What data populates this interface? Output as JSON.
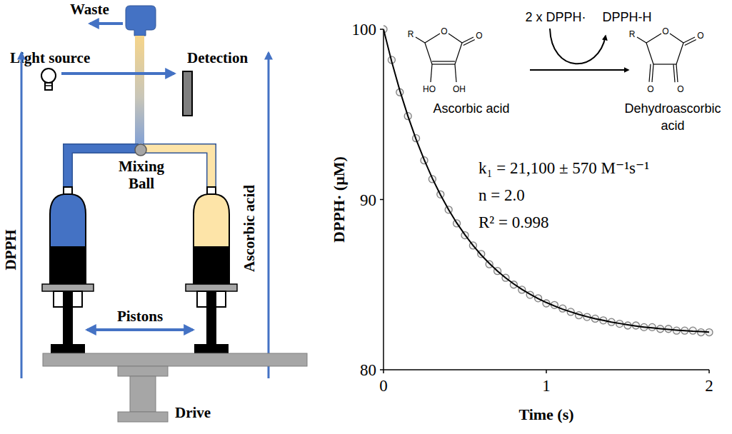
{
  "diagram": {
    "waste": "Waste",
    "light_source": "Light source",
    "detection": "Detection",
    "mixing_ball": "Mixing Ball",
    "left_syringe": "DPPH",
    "right_syringe": "Ascorbic acid",
    "pistons": "Pistons",
    "drive": "Drive"
  },
  "scheme": {
    "reagent": "2 x DPPH·",
    "product": "DPPH-H",
    "reactant_name": "Ascorbic acid",
    "product_name": "Dehydroascorbic acid",
    "reactant_atoms": [
      "R",
      "O",
      "O",
      "HO",
      "OH"
    ],
    "product_atoms": [
      "R",
      "O",
      "O",
      "O",
      "O"
    ]
  },
  "chart_data": {
    "type": "scatter",
    "xlabel": "Time (s)",
    "ylabel": "DPPH· (µM)",
    "xlim": [
      0,
      2
    ],
    "ylim": [
      80,
      100
    ],
    "xticks": [
      0,
      1,
      2
    ],
    "yticks": [
      80,
      90,
      100
    ],
    "annotations": [
      "k₁ = 21,100 ± 570 M⁻¹s⁻¹",
      "n = 2.0",
      "R² = 0.998"
    ],
    "x": [
      0,
      0.05,
      0.1,
      0.15,
      0.2,
      0.25,
      0.3,
      0.35,
      0.4,
      0.45,
      0.5,
      0.55,
      0.6,
      0.65,
      0.7,
      0.75,
      0.8,
      0.85,
      0.9,
      0.95,
      1,
      1.05,
      1.1,
      1.15,
      1.2,
      1.25,
      1.3,
      1.35,
      1.4,
      1.45,
      1.5,
      1.55,
      1.6,
      1.65,
      1.7,
      1.75,
      1.8,
      1.85,
      1.9,
      1.95,
      2
    ],
    "series": [
      {
        "type": "scatter",
        "marker": "circle",
        "color": "#7f7f7f",
        "values": [
          100,
          98.2,
          96.3,
          94.9,
          93.6,
          92.3,
          91.2,
          90.3,
          89.4,
          88.6,
          87.9,
          87.3,
          86.8,
          86.2,
          85.8,
          85.4,
          85.0,
          84.7,
          84.4,
          84.2,
          83.9,
          83.8,
          83.6,
          83.4,
          83.2,
          83.1,
          83.0,
          82.9,
          82.8,
          82.7,
          82.6,
          82.6,
          82.5,
          82.5,
          82.4,
          82.4,
          82.3,
          82.3,
          82.3,
          82.2,
          82.2
        ]
      },
      {
        "type": "line",
        "line_style": "solid",
        "color": "#000000",
        "values": [
          100,
          98.11,
          96.41,
          94.9,
          93.54,
          92.33,
          91.24,
          90.27,
          89.4,
          88.62,
          87.93,
          87.3,
          86.74,
          86.25,
          85.8,
          85.4,
          85.04,
          84.72,
          84.44,
          84.18,
          83.95,
          83.75,
          83.56,
          83.4,
          83.25,
          83.12,
          83.0,
          82.9,
          82.8,
          82.72,
          82.64,
          82.57,
          82.51,
          82.46,
          82.41,
          82.37,
          82.33,
          82.3,
          82.26,
          82.24,
          82.21
        ]
      }
    ]
  }
}
